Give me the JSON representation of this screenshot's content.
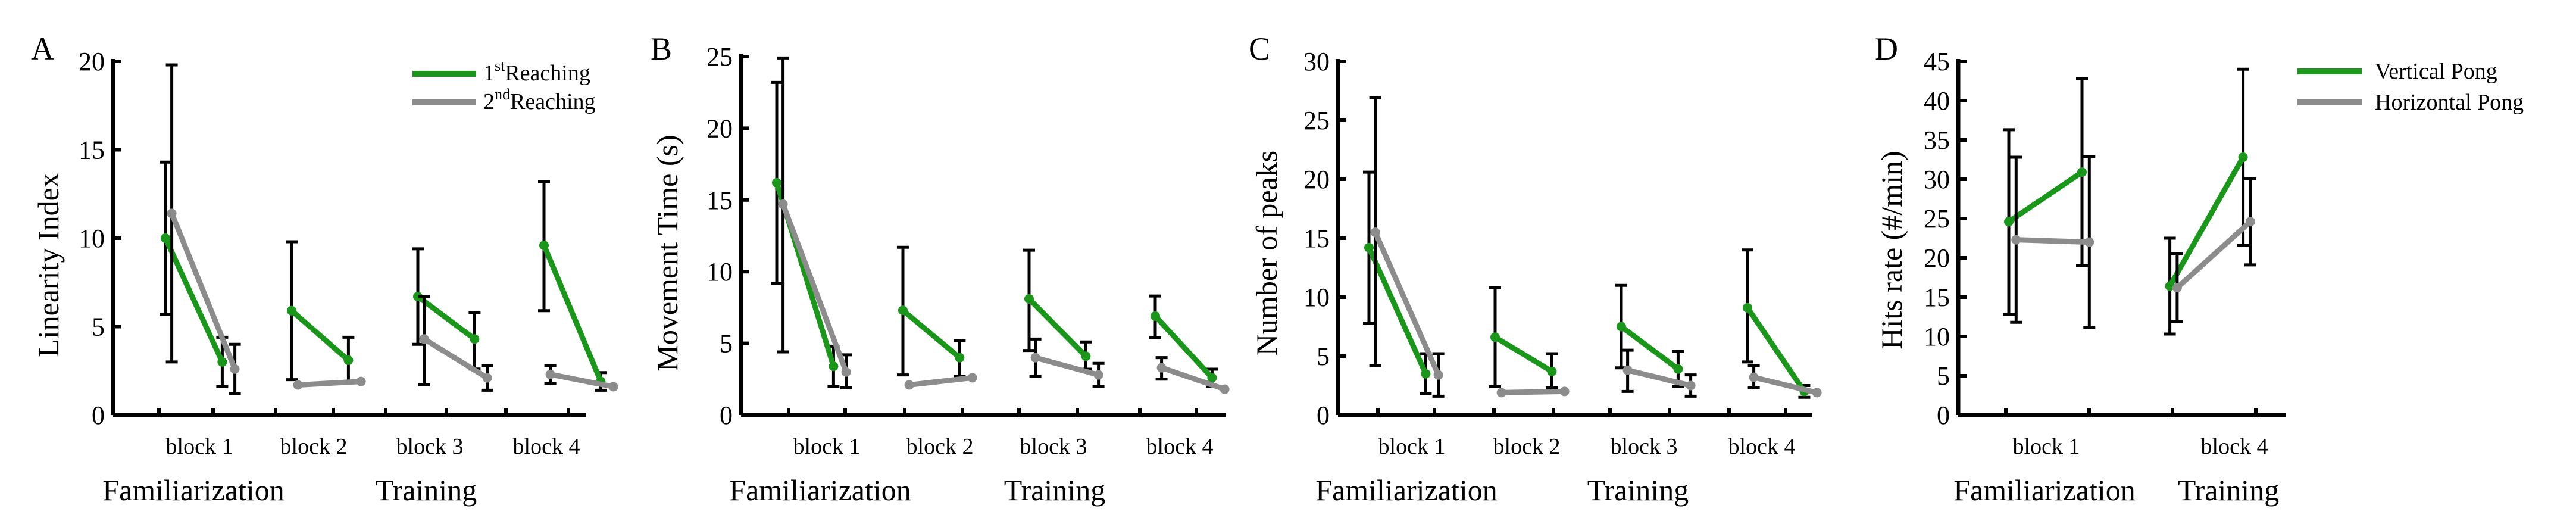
{
  "colors": {
    "green": "#1a961a",
    "gray": "#8c8c8c",
    "axis": "#000000"
  },
  "chart_data": [
    {
      "type": "line",
      "panel": "A",
      "ylabel": "Linearity Index",
      "ylim": [
        0,
        20
      ],
      "yticks": [
        0,
        5,
        10,
        15,
        20
      ],
      "block_labels": [
        "block 1",
        "block 2",
        "block 3",
        "block 4"
      ],
      "phase_labels": [
        "Familiarization",
        "Training"
      ],
      "legend": {
        "placement": "top-right",
        "entries": [
          {
            "prefix": "1",
            "sup": "st",
            "suffix": "Reaching",
            "color": "green"
          },
          {
            "prefix": "2",
            "sup": "nd",
            "suffix": "Reaching",
            "color": "gray"
          }
        ]
      },
      "series": [
        {
          "name": "1st Reaching",
          "color": "green",
          "segments": [
            [
              {
                "x": 0.0,
                "y": 10.0,
                "err": [
                  5.7,
                  14.3
                ]
              },
              {
                "x": 0.9,
                "y": 3.0,
                "err": [
                  1.6,
                  4.4
                ]
              }
            ],
            [
              {
                "x": 2.0,
                "y": 5.9,
                "err": [
                  2.0,
                  9.8
                ]
              },
              {
                "x": 2.9,
                "y": 3.1,
                "err": [
                  1.9,
                  4.4
                ]
              }
            ],
            [
              {
                "x": 4.0,
                "y": 6.7,
                "err": [
                  4.0,
                  9.4
                ]
              },
              {
                "x": 4.9,
                "y": 4.3,
                "err": [
                  2.6,
                  5.8
                ]
              }
            ],
            [
              {
                "x": 6.0,
                "y": 9.6,
                "err": [
                  5.9,
                  13.2
                ]
              },
              {
                "x": 6.9,
                "y": 1.9,
                "err": [
                  1.4,
                  2.4
                ]
              }
            ]
          ]
        },
        {
          "name": "2nd Reaching",
          "color": "gray",
          "segments": [
            [
              {
                "x": 0.1,
                "y": 11.4,
                "err": [
                  3.0,
                  19.8
                ]
              },
              {
                "x": 1.1,
                "y": 2.6,
                "err": [
                  1.2,
                  4.0
                ]
              }
            ],
            [
              {
                "x": 2.1,
                "y": 1.7,
                "err": null
              },
              {
                "x": 3.1,
                "y": 1.9,
                "err": null
              }
            ],
            [
              {
                "x": 4.1,
                "y": 4.3,
                "err": [
                  1.7,
                  6.7
                ]
              },
              {
                "x": 5.1,
                "y": 2.1,
                "err": [
                  1.4,
                  2.8
                ]
              }
            ],
            [
              {
                "x": 6.1,
                "y": 2.3,
                "err": [
                  1.8,
                  2.8
                ]
              },
              {
                "x": 7.1,
                "y": 1.6,
                "err": null
              }
            ]
          ]
        }
      ]
    },
    {
      "type": "line",
      "panel": "B",
      "ylabel": "Movement Time (s)",
      "ylim": [
        0,
        25
      ],
      "yticks": [
        0,
        5,
        10,
        15,
        20,
        25
      ],
      "block_labels": [
        "block 1",
        "block 2",
        "block 3",
        "block 4"
      ],
      "phase_labels": [
        "Familiarization",
        "Training"
      ],
      "series": [
        {
          "name": "1st Reaching",
          "color": "green",
          "segments": [
            [
              {
                "x": 0.0,
                "y": 16.2,
                "err": [
                  9.2,
                  23.2
                ]
              },
              {
                "x": 0.9,
                "y": 3.4,
                "err": [
                  2.0,
                  4.8
                ]
              }
            ],
            [
              {
                "x": 2.0,
                "y": 7.3,
                "err": [
                  2.8,
                  11.7
                ]
              },
              {
                "x": 2.9,
                "y": 4.0,
                "err": [
                  2.7,
                  5.2
                ]
              }
            ],
            [
              {
                "x": 4.0,
                "y": 8.1,
                "err": [
                  4.5,
                  11.5
                ]
              },
              {
                "x": 4.9,
                "y": 4.1,
                "err": [
                  3.2,
                  5.1
                ]
              }
            ],
            [
              {
                "x": 6.0,
                "y": 6.9,
                "err": [
                  5.4,
                  8.3
                ]
              },
              {
                "x": 6.9,
                "y": 2.6,
                "err": [
                  2.0,
                  3.2
                ]
              }
            ]
          ]
        },
        {
          "name": "2nd Reaching",
          "color": "gray",
          "segments": [
            [
              {
                "x": 0.1,
                "y": 14.7,
                "err": [
                  4.4,
                  24.9
                ]
              },
              {
                "x": 1.1,
                "y": 3.0,
                "err": [
                  1.9,
                  4.2
                ]
              }
            ],
            [
              {
                "x": 2.1,
                "y": 2.1,
                "err": null
              },
              {
                "x": 3.1,
                "y": 2.6,
                "err": null
              }
            ],
            [
              {
                "x": 4.1,
                "y": 4.0,
                "err": [
                  2.7,
                  5.3
                ]
              },
              {
                "x": 5.1,
                "y": 2.8,
                "err": [
                  2.0,
                  3.6
                ]
              }
            ],
            [
              {
                "x": 6.1,
                "y": 3.3,
                "err": [
                  2.5,
                  4.0
                ]
              },
              {
                "x": 7.1,
                "y": 1.8,
                "err": null
              }
            ]
          ]
        }
      ]
    },
    {
      "type": "line",
      "panel": "C",
      "ylabel": "Number of peaks",
      "ylim": [
        0,
        30
      ],
      "yticks": [
        0,
        5,
        10,
        15,
        20,
        25,
        30
      ],
      "block_labels": [
        "block 1",
        "block 2",
        "block 3",
        "block 4"
      ],
      "phase_labels": [
        "Familiarization",
        "Training"
      ],
      "series": [
        {
          "name": "1st Reaching",
          "color": "green",
          "segments": [
            [
              {
                "x": 0.0,
                "y": 14.2,
                "err": [
                  7.8,
                  20.6
                ]
              },
              {
                "x": 0.9,
                "y": 3.5,
                "err": [
                  1.8,
                  5.2
                ]
              }
            ],
            [
              {
                "x": 2.0,
                "y": 6.6,
                "err": [
                  2.4,
                  10.8
                ]
              },
              {
                "x": 2.9,
                "y": 3.7,
                "err": [
                  2.3,
                  5.2
                ]
              }
            ],
            [
              {
                "x": 4.0,
                "y": 7.5,
                "err": [
                  4.0,
                  11.0
                ]
              },
              {
                "x": 4.9,
                "y": 3.9,
                "err": [
                  2.4,
                  5.4
                ]
              }
            ],
            [
              {
                "x": 6.0,
                "y": 9.1,
                "err": [
                  4.5,
                  14.0
                ]
              },
              {
                "x": 6.9,
                "y": 2.0,
                "err": [
                  1.5,
                  2.5
                ]
              }
            ]
          ]
        },
        {
          "name": "2nd Reaching",
          "color": "gray",
          "segments": [
            [
              {
                "x": 0.1,
                "y": 15.5,
                "err": [
                  4.2,
                  26.9
                ]
              },
              {
                "x": 1.1,
                "y": 3.4,
                "err": [
                  1.6,
                  5.2
                ]
              }
            ],
            [
              {
                "x": 2.1,
                "y": 1.9,
                "err": null
              },
              {
                "x": 3.1,
                "y": 2.0,
                "err": null
              }
            ],
            [
              {
                "x": 4.1,
                "y": 3.8,
                "err": [
                  2.0,
                  5.5
                ]
              },
              {
                "x": 5.1,
                "y": 2.5,
                "err": [
                  1.6,
                  3.4
                ]
              }
            ],
            [
              {
                "x": 6.1,
                "y": 3.2,
                "err": [
                  2.3,
                  4.2
                ]
              },
              {
                "x": 7.1,
                "y": 1.9,
                "err": null
              }
            ]
          ]
        }
      ]
    },
    {
      "type": "line",
      "panel": "D",
      "ylabel": "Hits rate (#/min)",
      "ylim": [
        0,
        45
      ],
      "yticks": [
        0,
        5,
        10,
        15,
        20,
        25,
        30,
        35,
        40,
        45
      ],
      "block_labels": [
        "block 1",
        "block 4"
      ],
      "phase_labels": [
        "Familiarization",
        "Training"
      ],
      "legend": {
        "placement": "top-right",
        "entries": [
          {
            "prefix": "Vertical Pong",
            "sup": "",
            "suffix": "",
            "color": "green"
          },
          {
            "prefix": "Horizontal Pong",
            "sup": "",
            "suffix": "",
            "color": "gray"
          }
        ]
      },
      "series": [
        {
          "name": "Vertical Pong",
          "color": "green",
          "segments": [
            [
              {
                "x": 0.0,
                "y": 24.6,
                "err": [
                  12.8,
                  36.3
                ]
              },
              {
                "x": 1.0,
                "y": 30.9,
                "err": [
                  19.0,
                  42.8
                ]
              }
            ],
            [
              {
                "x": 2.2,
                "y": 16.4,
                "err": [
                  10.3,
                  22.5
                ]
              },
              {
                "x": 3.2,
                "y": 32.8,
                "err": [
                  21.6,
                  44.0
                ]
              }
            ]
          ]
        },
        {
          "name": "Horizontal Pong",
          "color": "gray",
          "segments": [
            [
              {
                "x": 0.1,
                "y": 22.3,
                "err": [
                  11.8,
                  32.8
                ]
              },
              {
                "x": 1.1,
                "y": 22.0,
                "err": [
                  11.1,
                  32.9
                ]
              }
            ],
            [
              {
                "x": 2.3,
                "y": 16.2,
                "err": [
                  11.9,
                  20.5
                ]
              },
              {
                "x": 3.3,
                "y": 24.6,
                "err": [
                  19.1,
                  30.1
                ]
              }
            ]
          ]
        }
      ]
    }
  ]
}
